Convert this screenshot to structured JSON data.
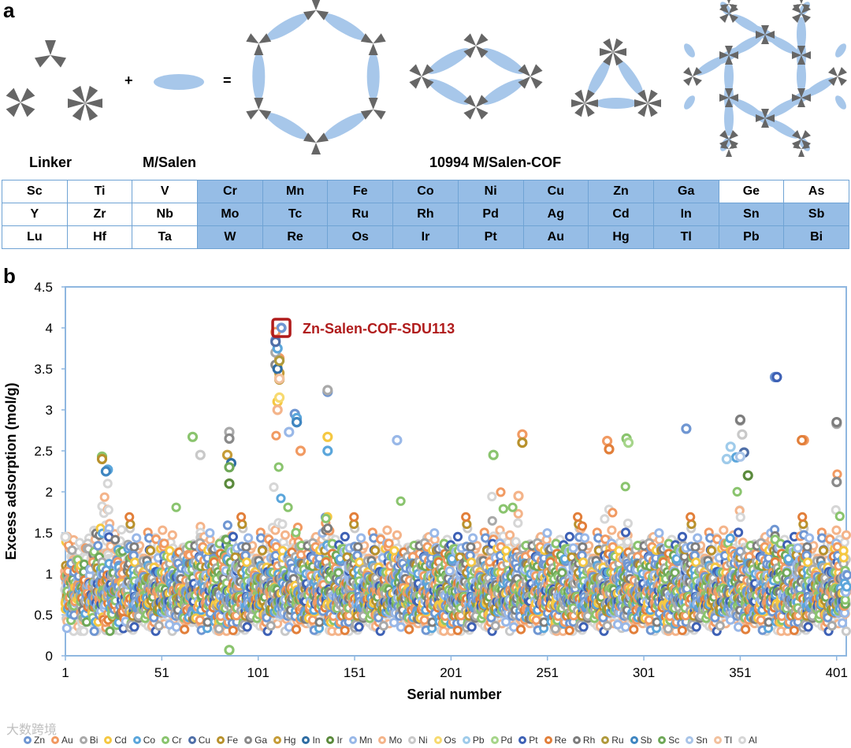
{
  "panel_a": {
    "letter": "a",
    "plus": "+",
    "equals": "=",
    "linker_label": "Linker",
    "msalen_label": "M/Salen",
    "cof_label": "10994 M/Salen-COF",
    "table": [
      [
        [
          "Sc",
          0
        ],
        [
          "Ti",
          0
        ],
        [
          "V",
          0
        ],
        [
          "Cr",
          1
        ],
        [
          "Mn",
          1
        ],
        [
          "Fe",
          1
        ],
        [
          "Co",
          1
        ],
        [
          "Ni",
          1
        ],
        [
          "Cu",
          1
        ],
        [
          "Zn",
          1
        ],
        [
          "Ga",
          1
        ],
        [
          "Ge",
          0
        ],
        [
          "As",
          0
        ]
      ],
      [
        [
          "Y",
          0
        ],
        [
          "Zr",
          0
        ],
        [
          "Nb",
          0
        ],
        [
          "Mo",
          1
        ],
        [
          "Tc",
          1
        ],
        [
          "Ru",
          1
        ],
        [
          "Rh",
          1
        ],
        [
          "Pd",
          1
        ],
        [
          "Ag",
          1
        ],
        [
          "Cd",
          1
        ],
        [
          "In",
          1
        ],
        [
          "Sn",
          1
        ],
        [
          "Sb",
          1
        ]
      ],
      [
        [
          "Lu",
          0
        ],
        [
          "Hf",
          0
        ],
        [
          "Ta",
          0
        ],
        [
          "W",
          1
        ],
        [
          "Re",
          1
        ],
        [
          "Os",
          1
        ],
        [
          "Ir",
          1
        ],
        [
          "Pt",
          1
        ],
        [
          "Au",
          1
        ],
        [
          "Hg",
          1
        ],
        [
          "Tl",
          1
        ],
        [
          "Pb",
          1
        ],
        [
          "Bi",
          1
        ]
      ]
    ],
    "colors": {
      "node": "#666666",
      "salen": "#a7c7ea",
      "table_border": "#6fa3d4",
      "table_highlight": "#96bde6"
    }
  },
  "panel_b": {
    "letter": "b"
  },
  "watermark": "大数跨境",
  "chart_data": {
    "type": "scatter",
    "xlabel": "Serial number",
    "ylabel": "Excess adsorption (mol/g)",
    "xlim": [
      1,
      406
    ],
    "ylim": [
      0,
      4.5
    ],
    "x_ticks": [
      1,
      51,
      101,
      151,
      201,
      251,
      301,
      351,
      401
    ],
    "y_ticks": [
      "0",
      "0.5",
      "1",
      "1.5",
      "2",
      "2.5",
      "3",
      "3.5",
      "4",
      "4.5"
    ],
    "grid": false,
    "legend_position": "bottom",
    "marker": "ring",
    "highlight": {
      "label": "Zn-Salen-COF-SDU113",
      "x": 113,
      "y": 4.0,
      "color": "#b01c1c"
    },
    "series": [
      {
        "name": "Zn",
        "color": "#6f96d2",
        "values": [
          [
            113,
            4.0
          ],
          [
            110,
            3.85
          ],
          [
            137,
            3.22
          ],
          [
            369,
            3.4
          ],
          [
            120,
            2.95
          ],
          [
            323,
            2.77
          ]
        ]
      },
      {
        "name": "Au",
        "color": "#f19a62",
        "values": [
          [
            110,
            3.95
          ],
          [
            112,
            3.63
          ],
          [
            238,
            2.7
          ],
          [
            282,
            2.62
          ],
          [
            384,
            2.63
          ],
          [
            123,
            2.5
          ]
        ]
      },
      {
        "name": "Bi",
        "color": "#a9a9a9",
        "values": [
          [
            137,
            3.24
          ],
          [
            401,
            2.83
          ],
          [
            351,
            2.87
          ],
          [
            86,
            2.73
          ],
          [
            110,
            3.7
          ]
        ]
      },
      {
        "name": "Cd",
        "color": "#f5c842",
        "values": [
          [
            111,
            3.55
          ],
          [
            111,
            3.1
          ],
          [
            137,
            2.67
          ],
          [
            112,
            3.39
          ]
        ]
      },
      {
        "name": "Co",
        "color": "#5ba6db",
        "values": [
          [
            111,
            3.75
          ],
          [
            137,
            2.5
          ],
          [
            349,
            2.42
          ],
          [
            23,
            2.27
          ],
          [
            121,
            2.9
          ]
        ]
      },
      {
        "name": "Cr",
        "color": "#8ac46e",
        "values": [
          [
            67,
            2.67
          ],
          [
            292,
            2.65
          ],
          [
            86,
            0.07
          ],
          [
            20,
            2.43
          ],
          [
            223,
            2.45
          ]
        ]
      },
      {
        "name": "Cu",
        "color": "#4f6fa8",
        "values": [
          [
            110,
            3.83
          ],
          [
            353,
            2.48
          ],
          [
            121,
            2.85
          ]
        ]
      },
      {
        "name": "Fe",
        "color": "#b8912c",
        "values": [
          [
            112,
            3.37
          ],
          [
            20,
            2.4
          ],
          [
            238,
            2.6
          ]
        ]
      },
      {
        "name": "Ga",
        "color": "#8a8a8a",
        "values": [
          [
            86,
            2.65
          ],
          [
            110,
            3.55
          ],
          [
            401,
            2.12
          ]
        ]
      },
      {
        "name": "Hg",
        "color": "#c59c38",
        "values": [
          [
            112,
            3.45
          ],
          [
            85,
            2.45
          ]
        ]
      },
      {
        "name": "In",
        "color": "#2f6da3",
        "values": [
          [
            87,
            2.35
          ],
          [
            111,
            3.5
          ]
        ]
      },
      {
        "name": "Ir",
        "color": "#5b8a3c",
        "values": [
          [
            86,
            2.1
          ],
          [
            355,
            2.2
          ]
        ]
      },
      {
        "name": "Mn",
        "color": "#99b8e8",
        "values": [
          [
            173,
            2.63
          ],
          [
            117,
            2.73
          ]
        ]
      },
      {
        "name": "Mo",
        "color": "#f4b48a",
        "values": [
          [
            111,
            3.0
          ],
          [
            236,
            1.95
          ]
        ]
      },
      {
        "name": "Ni",
        "color": "#c9c9c9",
        "values": [
          [
            71,
            2.45
          ],
          [
            352,
            2.7
          ]
        ]
      },
      {
        "name": "Os",
        "color": "#f7da70",
        "values": [
          [
            112,
            3.15
          ]
        ]
      },
      {
        "name": "Pb",
        "color": "#9fcbea",
        "values": [
          [
            346,
            2.55
          ],
          [
            344,
            2.4
          ]
        ]
      },
      {
        "name": "Pd",
        "color": "#a6d58a",
        "values": [
          [
            293,
            2.6
          ]
        ]
      },
      {
        "name": "Pt",
        "color": "#3e61b5",
        "values": [
          [
            370,
            3.4
          ]
        ]
      },
      {
        "name": "Re",
        "color": "#e27f3a",
        "values": [
          [
            283,
            2.52
          ],
          [
            383,
            2.63
          ]
        ]
      },
      {
        "name": "Rh",
        "color": "#7d7d7d",
        "values": [
          [
            401,
            2.85
          ],
          [
            351,
            2.88
          ]
        ]
      },
      {
        "name": "Ru",
        "color": "#b09a3c",
        "values": [
          [
            112,
            3.6
          ]
        ]
      },
      {
        "name": "Sb",
        "color": "#3f86c1",
        "values": [
          [
            22,
            2.25
          ],
          [
            121,
            2.85
          ]
        ]
      },
      {
        "name": "Sc",
        "color": "#6fa858",
        "values": [
          [
            86,
            2.3
          ]
        ]
      },
      {
        "name": "Sn",
        "color": "#a8c4e8",
        "values": [
          [
            351,
            2.43
          ]
        ]
      },
      {
        "name": "Tl",
        "color": "#f2c19e",
        "values": [
          [
            112,
            3.38
          ]
        ]
      },
      {
        "name": "Al",
        "color": "#d6d6d6",
        "values": [
          [
            1,
            1.45
          ]
        ]
      }
    ]
  }
}
